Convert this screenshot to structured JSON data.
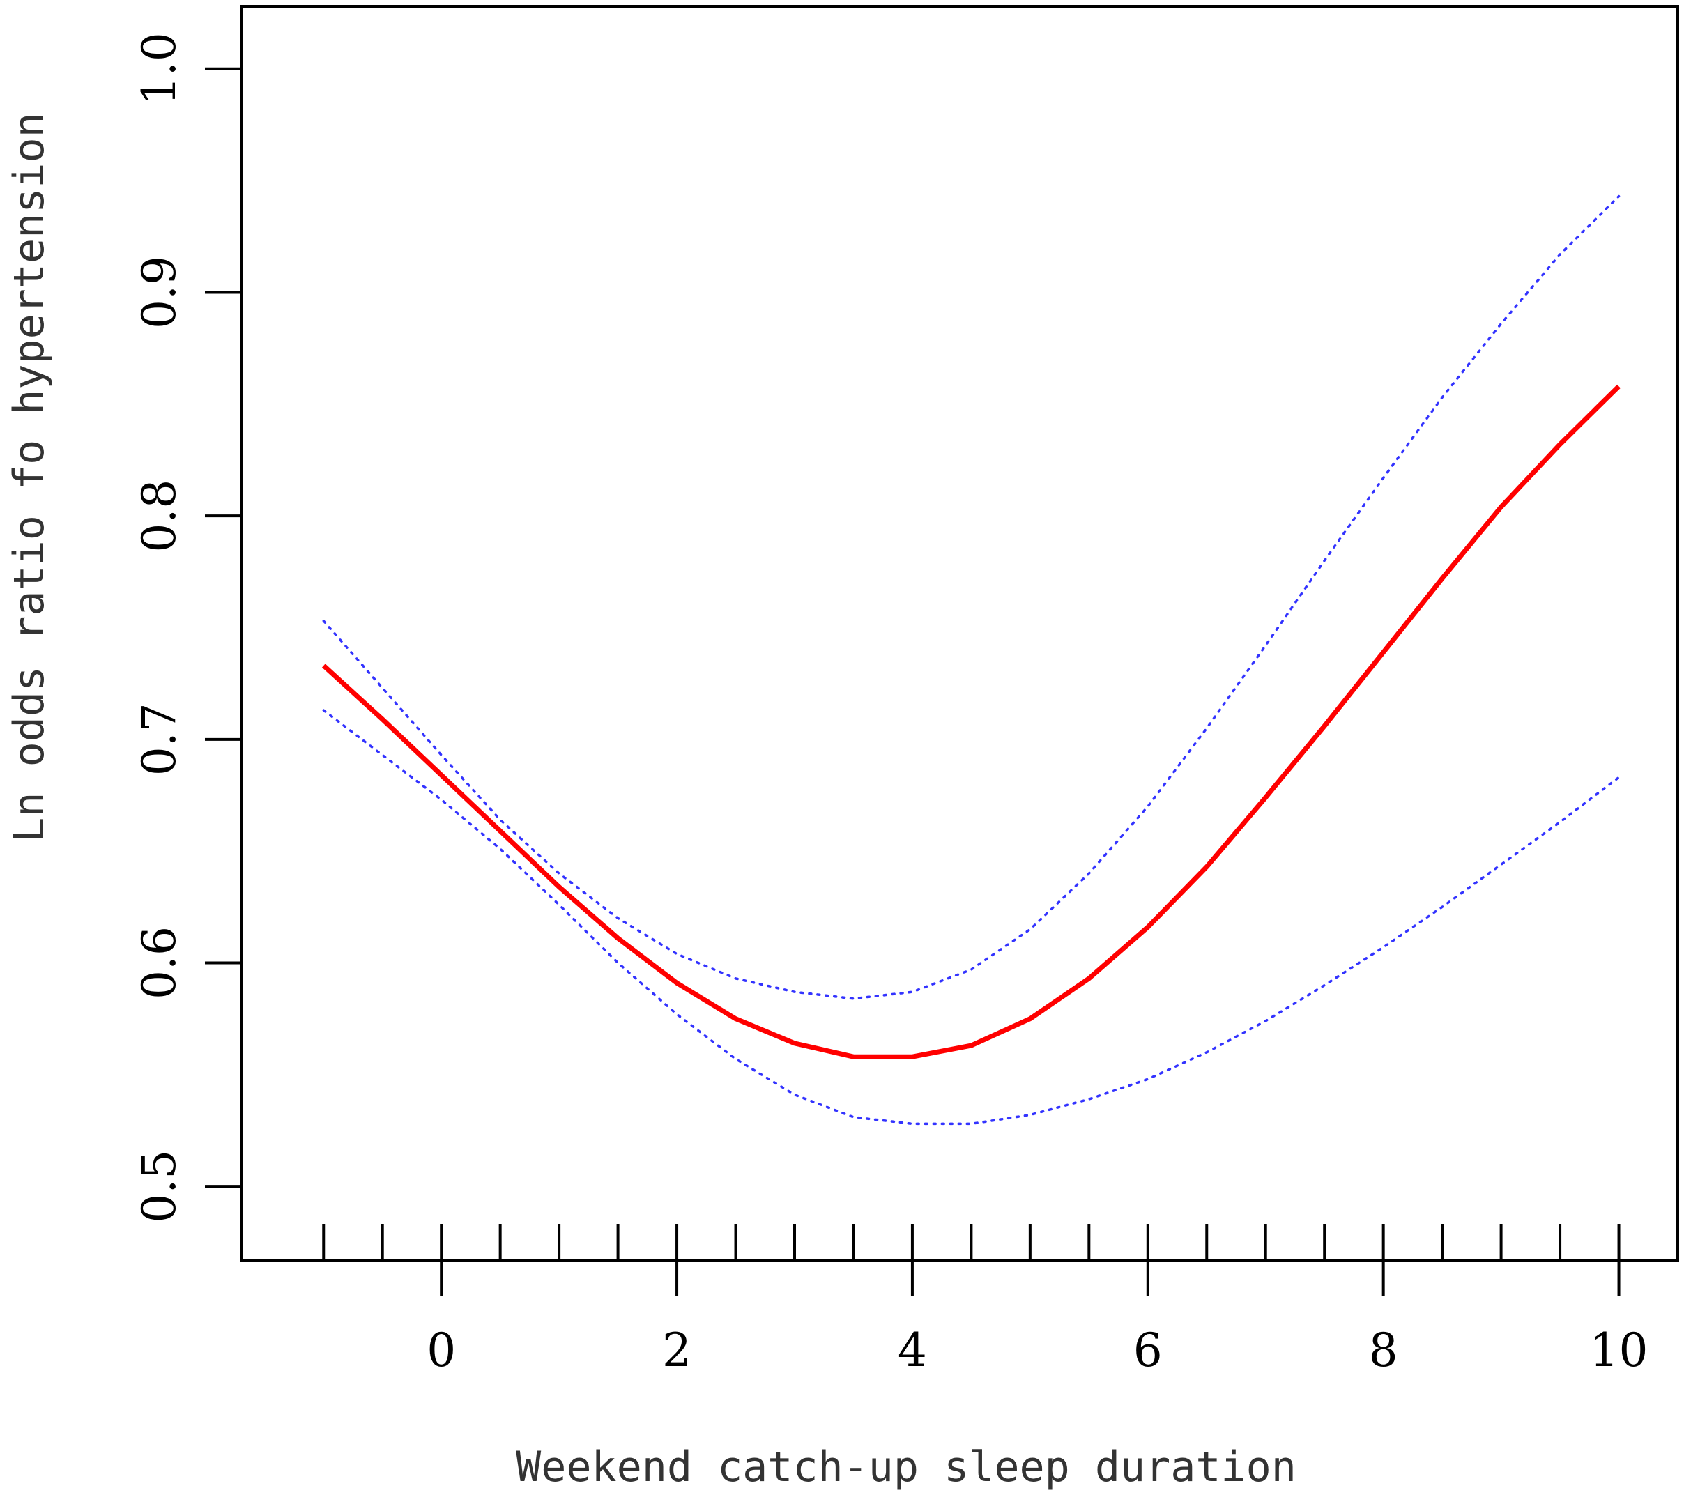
{
  "chart_data": {
    "type": "line",
    "title": "",
    "xlabel": "Weekend catch-up sleep duration",
    "ylabel": "Ln odds ratio fo hypertension",
    "xlim": [
      -1.7,
      10.5
    ],
    "ylim": [
      0.467,
      1.028
    ],
    "x_ticks": [
      0,
      2,
      4,
      6,
      8,
      10
    ],
    "x_minor_ticks": [
      -1,
      -0.5,
      0,
      0.5,
      1,
      1.5,
      2,
      2.5,
      3,
      3.5,
      4,
      4.5,
      5,
      5.5,
      6,
      6.5,
      7,
      7.5,
      8,
      8.5,
      9,
      9.5,
      10
    ],
    "y_ticks": [
      0.5,
      0.6,
      0.7,
      0.8,
      0.9,
      1.0
    ],
    "y_tick_labels": [
      "0.5",
      "0.6",
      "0.7",
      "0.8",
      "0.9",
      "1.0"
    ],
    "grid": false,
    "legend": "none",
    "series": [
      {
        "role": "estimate",
        "style": "solid",
        "color": "#ff0000",
        "x": [
          -1,
          -0.5,
          0,
          0.5,
          1,
          1.5,
          2,
          2.5,
          3,
          3.5,
          4,
          4.5,
          5,
          5.5,
          6,
          6.5,
          7,
          7.5,
          8,
          8.5,
          9,
          9.5,
          10
        ],
        "values": [
          0.733,
          0.709,
          0.684,
          0.659,
          0.634,
          0.611,
          0.591,
          0.575,
          0.564,
          0.558,
          0.558,
          0.563,
          0.575,
          0.593,
          0.616,
          0.643,
          0.674,
          0.706,
          0.739,
          0.772,
          0.804,
          0.832,
          0.858
        ]
      },
      {
        "role": "upper-ci",
        "style": "dotted",
        "color": "#3333ff",
        "x": [
          -1,
          -0.5,
          0,
          0.5,
          1,
          1.5,
          2,
          2.5,
          3,
          3.5,
          4,
          4.5,
          5,
          5.5,
          6,
          6.5,
          7,
          7.5,
          8,
          8.5,
          9,
          9.5,
          10
        ],
        "values": [
          0.753,
          0.723,
          0.693,
          0.664,
          0.64,
          0.62,
          0.604,
          0.593,
          0.587,
          0.584,
          0.587,
          0.597,
          0.615,
          0.64,
          0.67,
          0.705,
          0.742,
          0.78,
          0.817,
          0.853,
          0.886,
          0.917,
          0.943
        ]
      },
      {
        "role": "lower-ci",
        "style": "dotted",
        "color": "#3333ff",
        "x": [
          -1,
          -0.5,
          0,
          0.5,
          1,
          1.5,
          2,
          2.5,
          3,
          3.5,
          4,
          4.5,
          5,
          5.5,
          6,
          6.5,
          7,
          7.5,
          8,
          8.5,
          9,
          9.5,
          10
        ],
        "values": [
          0.713,
          0.693,
          0.673,
          0.651,
          0.626,
          0.6,
          0.577,
          0.557,
          0.541,
          0.531,
          0.528,
          0.528,
          0.532,
          0.539,
          0.548,
          0.56,
          0.574,
          0.59,
          0.607,
          0.625,
          0.644,
          0.663,
          0.683
        ]
      }
    ]
  }
}
